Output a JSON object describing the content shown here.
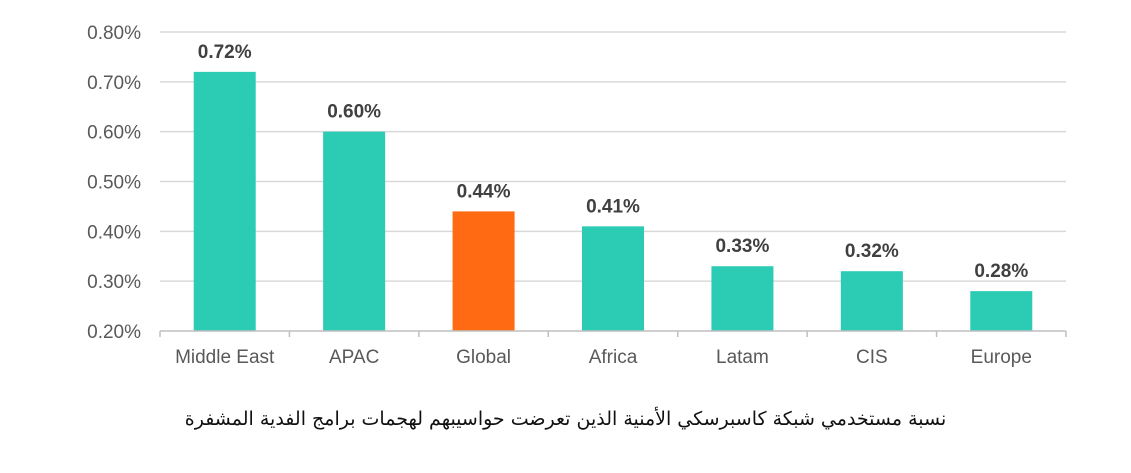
{
  "chart_data": {
    "type": "bar",
    "title": "",
    "xlabel": "",
    "ylabel": "",
    "categories": [
      "Middle East",
      "APAC",
      "Global",
      "Africa",
      "Latam",
      "CIS",
      "Europe"
    ],
    "values": [
      0.72,
      0.6,
      0.44,
      0.41,
      0.33,
      0.32,
      0.28
    ],
    "value_labels": [
      "0.72%",
      "0.60%",
      "0.44%",
      "0.41%",
      "0.33%",
      "0.32%",
      "0.28%"
    ],
    "highlight_category": "Global",
    "ylim": [
      0.2,
      0.8
    ],
    "yticks": [
      0.2,
      0.3,
      0.4,
      0.5,
      0.6,
      0.7,
      0.8
    ],
    "ytick_labels": [
      "0.20%",
      "0.30%",
      "0.40%",
      "0.50%",
      "0.60%",
      "0.70%",
      "0.80%"
    ],
    "grid": true,
    "colors": {
      "bar": "#2ccbb3",
      "highlight": "#ff6a13",
      "grid": "#d9d9d9",
      "axis": "#bfbfbf",
      "tick_text": "#595959",
      "label_text": "#404040"
    }
  },
  "caption": "نسبة مستخدمي شبكة كاسبرسكي الأمنية الذين تعرضت حواسيبهم لهجمات برامج الفدية المشفرة"
}
